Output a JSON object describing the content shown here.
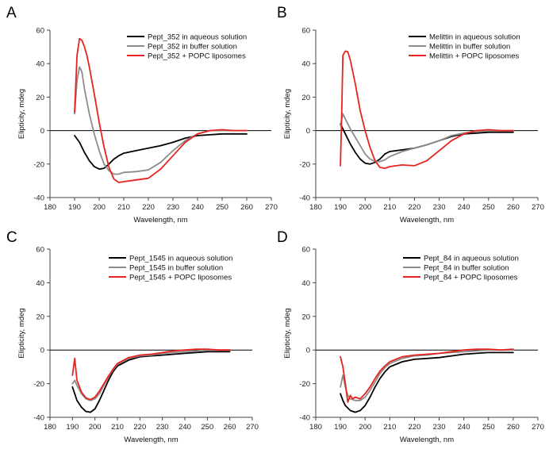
{
  "colors": {
    "aqueous": "#000000",
    "buffer": "#8c8c8c",
    "popc": "#e8231f",
    "axis": "#444444",
    "zero_line": "#000000"
  },
  "chart_data": [
    {
      "panel": "A",
      "type": "line",
      "xlabel": "Wavelength, nm",
      "ylabel": "Elipticity, mdeg",
      "xlim": [
        180,
        270
      ],
      "ylim": [
        -40,
        60
      ],
      "xticks": [
        180,
        190,
        200,
        210,
        220,
        230,
        240,
        250,
        260,
        270
      ],
      "yticks": [
        -40,
        -20,
        0,
        20,
        40,
        60
      ],
      "legend_position": "top-right",
      "series": [
        {
          "name": "Pept_352 in aqueous solution",
          "color_key": "aqueous",
          "x": [
            190,
            192,
            194,
            196,
            198,
            200,
            202,
            204,
            206,
            208,
            210,
            215,
            220,
            225,
            230,
            235,
            240,
            245,
            250,
            255,
            260
          ],
          "y": [
            -3,
            -7,
            -13,
            -18,
            -21.5,
            -23,
            -22.5,
            -20,
            -17,
            -15,
            -13.5,
            -12,
            -10.5,
            -9,
            -7,
            -4.5,
            -3,
            -2.5,
            -2,
            -2,
            -2
          ]
        },
        {
          "name": "Pept_352 in buffer solution",
          "color_key": "buffer",
          "x": [
            190,
            191,
            192,
            193,
            194,
            196,
            198,
            200,
            202,
            204,
            206,
            208,
            210,
            215,
            220,
            225,
            230,
            235,
            240,
            245,
            250,
            255,
            260
          ],
          "y": [
            10,
            30,
            38,
            35,
            25,
            10,
            -2,
            -12,
            -20,
            -24,
            -26,
            -26,
            -25,
            -24.5,
            -23.5,
            -19,
            -12,
            -6,
            -2,
            0,
            0,
            0,
            0
          ]
        },
        {
          "name": "Pept_352 + POPC liposomes",
          "color_key": "popc",
          "x": [
            190,
            191,
            192,
            193,
            194,
            195,
            196,
            198,
            200,
            202,
            204,
            206,
            208,
            210,
            215,
            220,
            225,
            230,
            235,
            240,
            245,
            250,
            255,
            260
          ],
          "y": [
            11,
            45,
            55,
            54,
            50,
            45,
            38,
            22,
            5,
            -10,
            -22,
            -29,
            -31,
            -30.5,
            -29.5,
            -28.5,
            -23,
            -15,
            -7,
            -2,
            0,
            0.5,
            0,
            0
          ]
        }
      ]
    },
    {
      "panel": "B",
      "type": "line",
      "xlabel": "Wavelength, nm",
      "ylabel": "Elipticity, mdeg",
      "xlim": [
        180,
        270
      ],
      "ylim": [
        -40,
        60
      ],
      "xticks": [
        180,
        190,
        200,
        210,
        220,
        230,
        240,
        250,
        260,
        270
      ],
      "yticks": [
        -40,
        -20,
        0,
        20,
        40,
        60
      ],
      "legend_position": "top-right",
      "series": [
        {
          "name": "Melittin in aqueous solution",
          "color_key": "aqueous",
          "x": [
            190,
            192,
            194,
            196,
            198,
            200,
            202,
            204,
            206,
            208,
            210,
            215,
            220,
            225,
            230,
            235,
            240,
            245,
            250,
            255,
            260
          ],
          "y": [
            4,
            -2,
            -8,
            -13,
            -17,
            -19.5,
            -20,
            -19,
            -17,
            -14,
            -12.5,
            -11.5,
            -10.5,
            -8.5,
            -6,
            -3.5,
            -2,
            -1.5,
            -1,
            -1,
            -1
          ]
        },
        {
          "name": "Melittin in buffer solution",
          "color_key": "buffer",
          "x": [
            190,
            191,
            192,
            193,
            194,
            196,
            198,
            200,
            202,
            204,
            206,
            208,
            210,
            215,
            220,
            225,
            230,
            235,
            240,
            245,
            250,
            255,
            260
          ],
          "y": [
            3,
            10,
            7,
            4,
            1,
            -4,
            -9,
            -14,
            -17,
            -18.5,
            -18.5,
            -17.5,
            -15.5,
            -12.5,
            -10.5,
            -8.5,
            -6,
            -3,
            -1.5,
            -0.5,
            0,
            0,
            0
          ]
        },
        {
          "name": "Melittin + POPC liposomes",
          "color_key": "popc",
          "x": [
            190,
            190.5,
            191,
            192,
            193,
            194,
            196,
            198,
            200,
            202,
            204,
            206,
            208,
            210,
            215,
            220,
            225,
            230,
            235,
            240,
            245,
            250,
            255,
            260
          ],
          "y": [
            -21,
            10,
            45,
            47.5,
            47,
            42,
            28,
            12,
            0,
            -10,
            -18,
            -22,
            -22.5,
            -21.5,
            -20.5,
            -21,
            -18,
            -12,
            -6,
            -2,
            0,
            0.5,
            0,
            0
          ]
        }
      ]
    },
    {
      "panel": "C",
      "type": "line",
      "xlabel": "Wavelength, nm",
      "ylabel": "Elipticity, mdeg",
      "xlim": [
        180,
        270
      ],
      "ylim": [
        -40,
        60
      ],
      "xticks": [
        180,
        190,
        200,
        210,
        220,
        230,
        240,
        250,
        260,
        270
      ],
      "yticks": [
        -40,
        -20,
        0,
        20,
        40,
        60
      ],
      "legend_position": "top-right",
      "series": [
        {
          "name": "Pept_1545 in aqueous solution",
          "color_key": "aqueous",
          "x": [
            190,
            191,
            192,
            194,
            196,
            198,
            200,
            202,
            204,
            206,
            208,
            210,
            215,
            220,
            225,
            230,
            235,
            240,
            245,
            250,
            255,
            260
          ],
          "y": [
            -22,
            -26,
            -30,
            -34,
            -36.5,
            -37,
            -35,
            -30,
            -24,
            -18,
            -13,
            -9.5,
            -6,
            -4,
            -3.5,
            -3,
            -2.5,
            -2,
            -1.5,
            -1,
            -1,
            -1
          ]
        },
        {
          "name": "Pept_1545 in buffer solution",
          "color_key": "buffer",
          "x": [
            190,
            191,
            192,
            194,
            196,
            198,
            200,
            202,
            204,
            206,
            208,
            210,
            215,
            220,
            225,
            230,
            235,
            240,
            245,
            250,
            255,
            260
          ],
          "y": [
            -20,
            -18,
            -21,
            -26,
            -29,
            -30,
            -29,
            -26,
            -21,
            -16,
            -12,
            -8.5,
            -5,
            -3.5,
            -3,
            -2,
            -1.5,
            -1,
            -0.5,
            0,
            0,
            0
          ]
        },
        {
          "name": "Pept_1545 + POPC liposomes",
          "color_key": "popc",
          "x": [
            190,
            191,
            192,
            194,
            196,
            198,
            200,
            202,
            204,
            206,
            208,
            210,
            215,
            220,
            225,
            230,
            235,
            240,
            245,
            250,
            255,
            260
          ],
          "y": [
            -15,
            -5,
            -18,
            -25,
            -28.5,
            -29.5,
            -28,
            -24.5,
            -20,
            -15.5,
            -11.5,
            -8,
            -4.5,
            -3,
            -2.5,
            -1.5,
            -0.5,
            0,
            0.5,
            0.5,
            0,
            0
          ]
        }
      ]
    },
    {
      "panel": "D",
      "type": "line",
      "xlabel": "Wavelength, nm",
      "ylabel": "Elipticity, mdeg",
      "xlim": [
        180,
        270
      ],
      "ylim": [
        -40,
        60
      ],
      "xticks": [
        180,
        190,
        200,
        210,
        220,
        230,
        240,
        250,
        260,
        270
      ],
      "yticks": [
        -40,
        -20,
        0,
        20,
        40,
        60
      ],
      "legend_position": "top-right",
      "series": [
        {
          "name": "Pept_84 in aqueous solution",
          "color_key": "aqueous",
          "x": [
            190,
            191,
            192,
            193,
            194,
            196,
            198,
            200,
            202,
            204,
            206,
            208,
            210,
            215,
            220,
            225,
            230,
            235,
            240,
            245,
            250,
            255,
            260
          ],
          "y": [
            -26,
            -30,
            -33,
            -34.5,
            -36,
            -37,
            -36,
            -33,
            -28,
            -22,
            -17,
            -13,
            -10,
            -7,
            -5.5,
            -5,
            -4.5,
            -3.5,
            -2.5,
            -2,
            -1.5,
            -1.5,
            -1.5
          ]
        },
        {
          "name": "Pept_84 in buffer solution",
          "color_key": "buffer",
          "x": [
            190,
            191,
            192,
            193,
            194,
            196,
            198,
            200,
            202,
            204,
            206,
            208,
            210,
            215,
            220,
            225,
            230,
            235,
            240,
            245,
            250,
            255,
            260
          ],
          "y": [
            -22,
            -15,
            -22,
            -27,
            -29,
            -30,
            -30,
            -28,
            -24,
            -19,
            -14,
            -10.5,
            -8,
            -5,
            -3.5,
            -3,
            -2,
            -1.5,
            -1,
            -0.5,
            0,
            0,
            0
          ]
        },
        {
          "name": "Pept_84 + POPC liposomes",
          "color_key": "popc",
          "x": [
            190,
            191,
            192,
            193,
            194,
            195,
            196,
            198,
            200,
            202,
            204,
            206,
            208,
            210,
            215,
            220,
            225,
            230,
            235,
            240,
            245,
            250,
            255,
            260
          ],
          "y": [
            -4,
            -10,
            -20,
            -31,
            -27,
            -29,
            -28,
            -29,
            -26,
            -22,
            -17,
            -12.5,
            -9.5,
            -7,
            -4,
            -3,
            -2.5,
            -2,
            -1,
            0,
            0.5,
            0.5,
            0,
            0.5
          ]
        }
      ]
    }
  ]
}
